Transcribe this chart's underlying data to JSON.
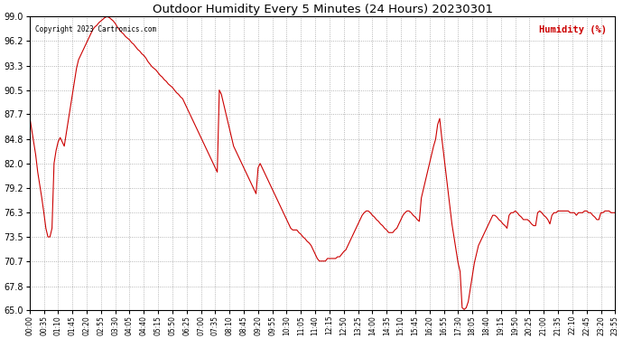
{
  "title": "Outdoor Humidity Every 5 Minutes (24 Hours) 20230301",
  "copyright_text": "Copyright 2023 Cartronics.com",
  "legend_label": "Humidity (%)",
  "legend_color": "#cc0000",
  "line_color": "#cc0000",
  "background_color": "#ffffff",
  "grid_color": "#999999",
  "ylim": [
    65.0,
    99.0
  ],
  "yticks": [
    65.0,
    67.8,
    70.7,
    73.5,
    76.3,
    79.2,
    82.0,
    84.8,
    87.7,
    90.5,
    93.3,
    96.2,
    99.0
  ],
  "humidity_values": [
    87.5,
    86.0,
    84.5,
    83.0,
    81.0,
    79.5,
    78.0,
    76.3,
    74.5,
    73.5,
    73.5,
    74.5,
    82.0,
    83.5,
    84.5,
    85.0,
    84.5,
    84.0,
    85.5,
    87.0,
    88.5,
    90.0,
    91.5,
    93.0,
    94.0,
    94.5,
    95.0,
    95.5,
    96.0,
    96.5,
    97.0,
    97.5,
    97.8,
    98.0,
    98.3,
    98.5,
    98.7,
    98.9,
    99.0,
    98.9,
    98.7,
    98.5,
    98.2,
    97.8,
    97.5,
    97.2,
    97.0,
    96.7,
    96.5,
    96.3,
    96.0,
    95.8,
    95.5,
    95.2,
    95.0,
    94.7,
    94.5,
    94.2,
    93.8,
    93.5,
    93.2,
    93.0,
    92.8,
    92.5,
    92.2,
    92.0,
    91.7,
    91.5,
    91.2,
    91.0,
    90.8,
    90.5,
    90.2,
    90.0,
    89.7,
    89.5,
    89.0,
    88.5,
    88.0,
    87.5,
    87.0,
    86.5,
    86.0,
    85.5,
    85.0,
    84.5,
    84.0,
    83.5,
    83.0,
    82.5,
    82.0,
    81.5,
    81.0,
    90.5,
    90.0,
    89.0,
    88.0,
    87.0,
    86.0,
    85.0,
    84.0,
    83.5,
    83.0,
    82.5,
    82.0,
    81.5,
    81.0,
    80.5,
    80.0,
    79.5,
    79.0,
    78.5,
    81.5,
    82.0,
    81.5,
    81.0,
    80.5,
    80.0,
    79.5,
    79.0,
    78.5,
    78.0,
    77.5,
    77.0,
    76.5,
    76.0,
    75.5,
    75.0,
    74.5,
    74.3,
    74.3,
    74.3,
    74.0,
    73.8,
    73.5,
    73.3,
    73.0,
    72.8,
    72.5,
    72.0,
    71.5,
    71.0,
    70.7,
    70.7,
    70.7,
    70.7,
    71.0,
    71.0,
    71.0,
    71.0,
    71.0,
    71.2,
    71.2,
    71.5,
    71.8,
    72.0,
    72.5,
    73.0,
    73.5,
    74.0,
    74.5,
    75.0,
    75.5,
    76.0,
    76.3,
    76.5,
    76.5,
    76.3,
    76.0,
    75.8,
    75.5,
    75.3,
    75.0,
    74.8,
    74.5,
    74.3,
    74.0,
    74.0,
    74.0,
    74.3,
    74.5,
    75.0,
    75.5,
    76.0,
    76.3,
    76.5,
    76.5,
    76.3,
    76.0,
    75.8,
    75.5,
    75.3,
    78.0,
    79.0,
    80.0,
    81.0,
    82.0,
    83.0,
    84.0,
    84.8,
    86.5,
    87.2,
    85.0,
    83.0,
    81.0,
    79.0,
    77.0,
    75.0,
    73.5,
    72.0,
    70.5,
    69.5,
    65.3,
    65.1,
    65.3,
    66.0,
    67.5,
    69.0,
    70.5,
    71.5,
    72.5,
    73.0,
    73.5,
    74.0,
    74.5,
    75.0,
    75.5,
    76.0,
    76.0,
    75.8,
    75.5,
    75.3,
    75.0,
    74.8,
    74.5,
    76.0,
    76.3,
    76.3,
    76.5,
    76.3,
    76.0,
    75.8,
    75.5,
    75.5,
    75.5,
    75.3,
    75.0,
    74.8,
    74.8,
    76.3,
    76.5,
    76.3,
    76.0,
    75.8,
    75.5,
    75.0,
    76.0,
    76.3,
    76.3,
    76.5,
    76.5,
    76.5,
    76.5,
    76.5,
    76.5,
    76.3,
    76.3,
    76.3,
    76.0,
    76.3,
    76.3,
    76.3,
    76.5,
    76.5,
    76.3,
    76.3,
    76.0,
    75.8,
    75.5,
    75.5,
    76.3,
    76.3,
    76.5,
    76.5,
    76.5,
    76.3,
    76.3,
    76.3
  ]
}
